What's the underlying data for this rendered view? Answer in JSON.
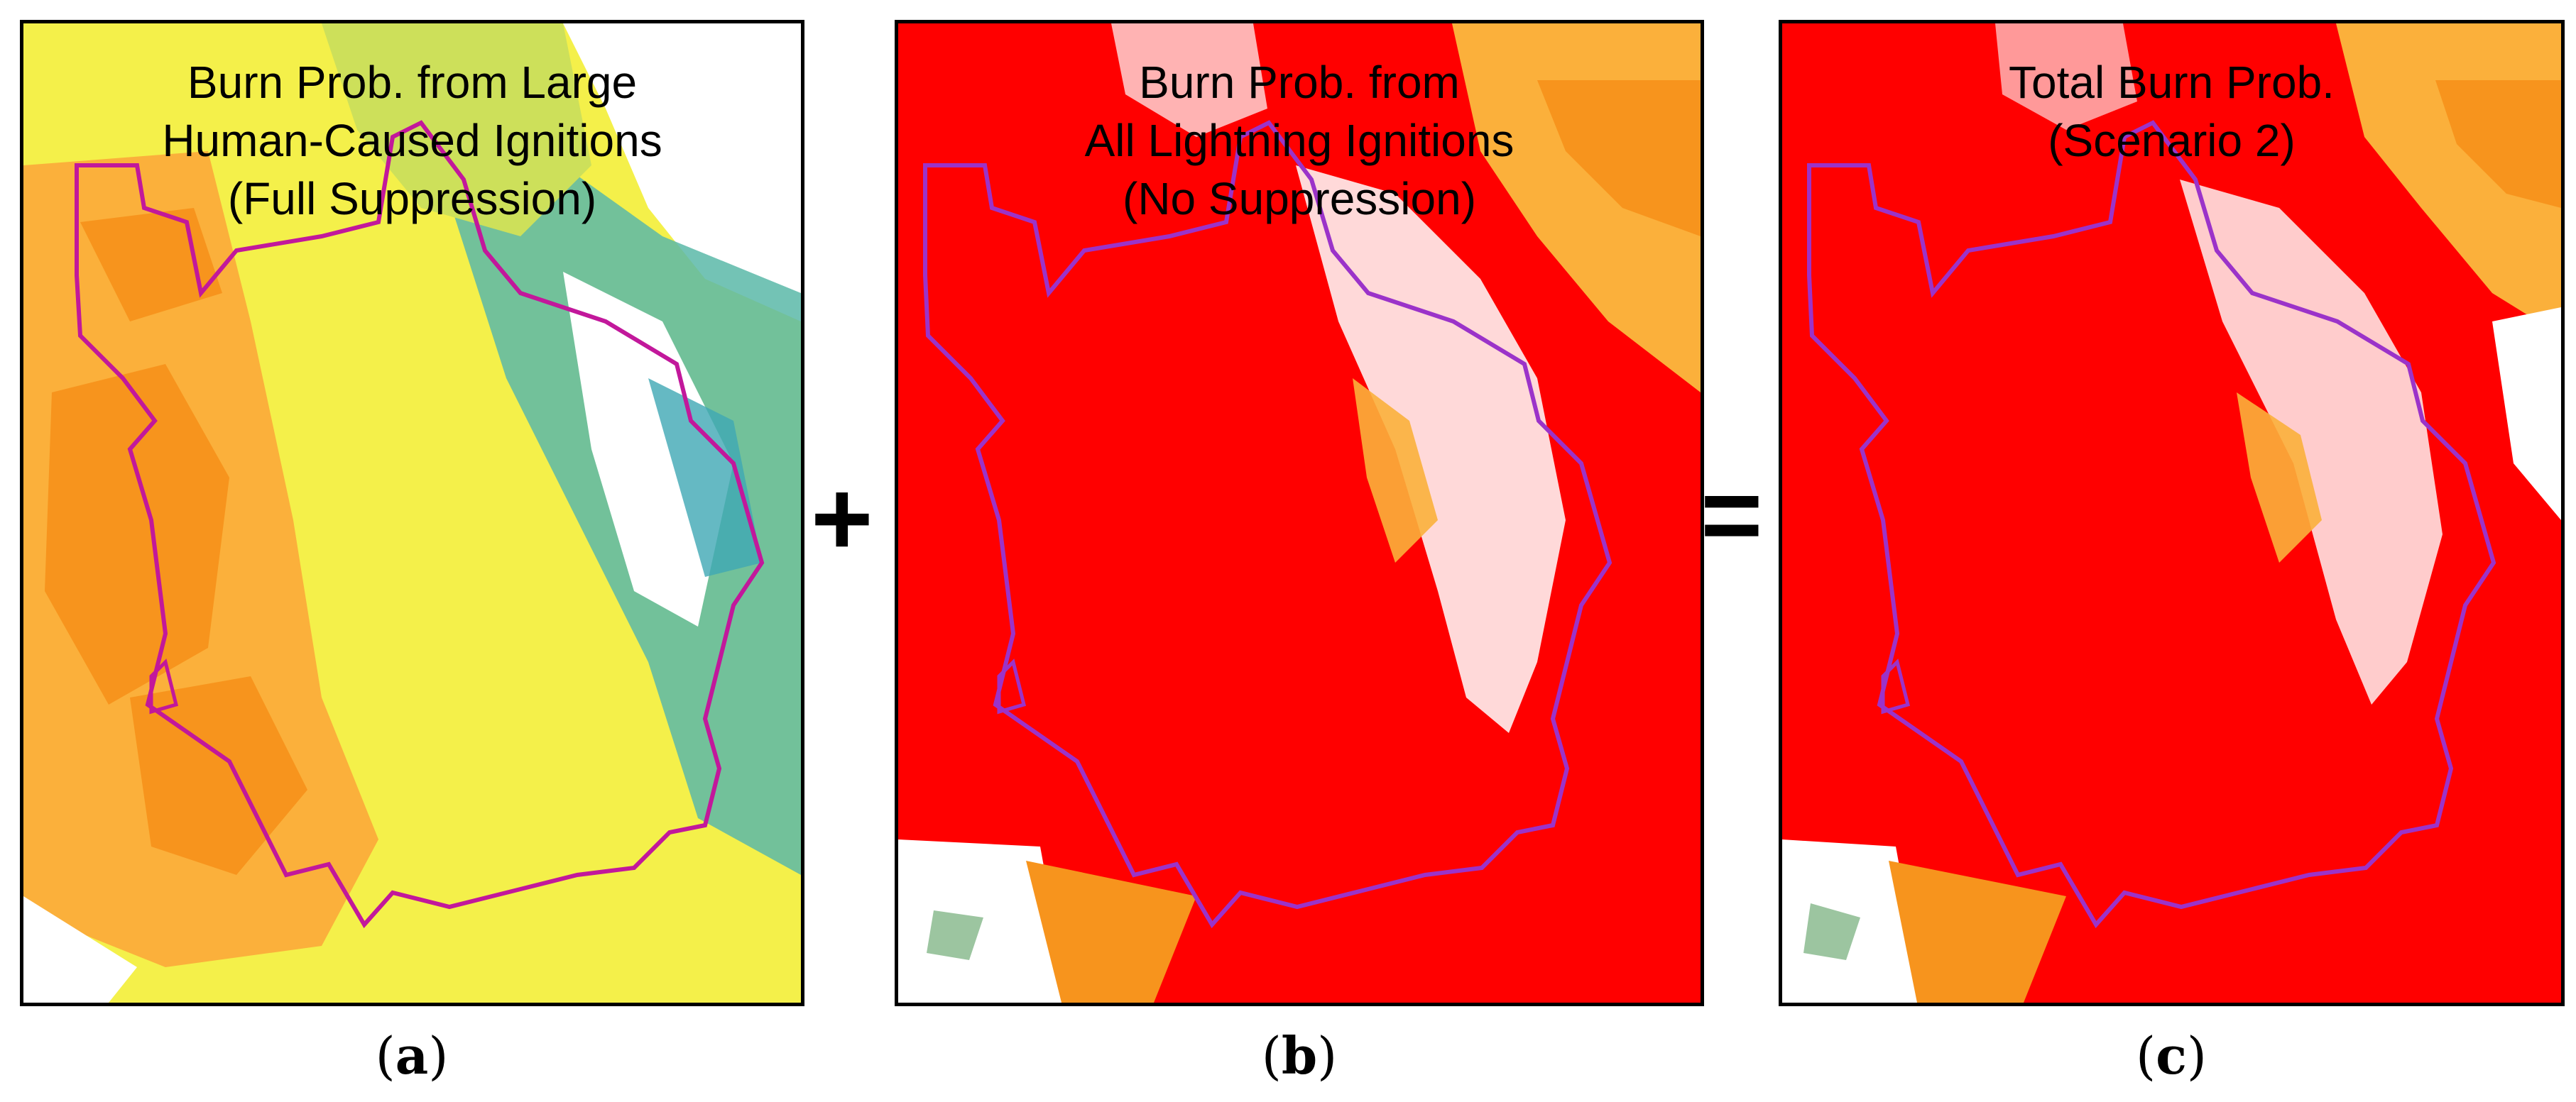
{
  "panels": [
    {
      "id": "a",
      "title_lines": [
        "Burn Prob. from Large",
        "Human-Caused Ignitions",
        "(Full Suppression)"
      ],
      "label_open": "(",
      "label_letter": "a",
      "label_close": ")",
      "dominant_colors": [
        "#f7f74a",
        "#fbb03b",
        "#f7941d",
        "#3ea8b4",
        "#ffffff"
      ]
    },
    {
      "id": "b",
      "title_lines": [
        "Burn Prob. from",
        "All Lightning Ignitions",
        "(No Suppression)"
      ],
      "label_open": "(",
      "label_letter": "b",
      "label_close": ")",
      "dominant_colors": [
        "#ff0000",
        "#f7941d",
        "#fbb03b",
        "#ffffff"
      ]
    },
    {
      "id": "c",
      "title_lines": [
        "Total Burn Prob.",
        "(Scenario 2)"
      ],
      "label_open": "(",
      "label_letter": "c",
      "label_close": ")",
      "dominant_colors": [
        "#ff0000",
        "#f7941d",
        "#fbb03b",
        "#ffffff"
      ]
    }
  ],
  "operators": {
    "plus": "+",
    "equals": "="
  },
  "boundary_color": "#c2189b"
}
